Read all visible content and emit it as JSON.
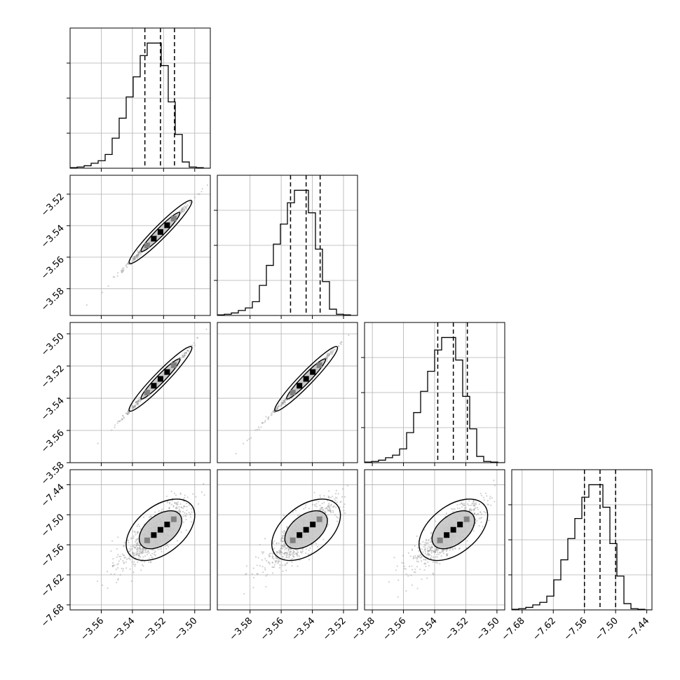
{
  "chart_data": {
    "type": "corner",
    "title": "",
    "colors": {
      "line": "#000000",
      "grid": "#b0b0b0",
      "scatter": "#9a9a9a",
      "density_mid": "#7f7f7f"
    },
    "parameters": [
      {
        "label": "",
        "quantiles": [
          -3.532,
          -3.522,
          -3.513
        ],
        "hist_range": [
          -3.58,
          -3.49
        ],
        "ticks": [
          -3.56,
          -3.54,
          -3.52,
          -3.5
        ],
        "tick_labels": [
          "−3.56",
          "−3.54",
          "−3.52",
          "−3.50"
        ],
        "hist": [
          0.5,
          1,
          2,
          4,
          6,
          11,
          24,
          40,
          57,
          73,
          90,
          100,
          100,
          82,
          53,
          27,
          5,
          1,
          0.5,
          0
        ]
      },
      {
        "label": "",
        "quantiles": [
          -3.554,
          -3.544,
          -3.535
        ],
        "hist_range": [
          -3.601,
          -3.511
        ],
        "ticks": [
          -3.58,
          -3.56,
          -3.54,
          -3.52
        ],
        "tick_labels": [
          "−3.58",
          "−3.56",
          "−3.54",
          "−3.52"
        ],
        "hist": [
          0.5,
          1,
          2,
          4,
          6,
          11,
          24,
          40,
          57,
          73,
          90,
          100,
          100,
          82,
          53,
          27,
          5,
          1,
          0.5,
          0
        ]
      },
      {
        "label": "",
        "quantiles": [
          -3.538,
          -3.528,
          -3.519
        ],
        "hist_range": [
          -3.585,
          -3.495
        ],
        "ticks": [
          -3.58,
          -3.56,
          -3.54,
          -3.52,
          -3.5
        ],
        "tick_labels": [
          "−3.58",
          "−3.56",
          "−3.54",
          "−3.52",
          "−3.50"
        ],
        "hist": [
          0.5,
          1,
          2,
          4,
          6,
          11,
          24,
          40,
          57,
          73,
          90,
          100,
          100,
          82,
          53,
          27,
          5,
          1,
          0.5,
          0
        ]
      },
      {
        "label": "",
        "quantiles": [
          -7.56,
          -7.53,
          -7.5
        ],
        "hist_range": [
          -7.7,
          -7.43
        ],
        "ticks": [
          -7.68,
          -7.62,
          -7.56,
          -7.5,
          -7.44
        ],
        "tick_labels": [
          "−7.68",
          "−7.62",
          "−7.56",
          "−7.50",
          "−7.44"
        ],
        "hist": [
          0.5,
          1,
          2,
          4,
          6,
          11,
          24,
          40,
          57,
          73,
          90,
          100,
          100,
          82,
          53,
          27,
          5,
          1,
          0.5,
          0
        ]
      }
    ],
    "row_ranges": [
      null,
      {
        "range": [
          -3.597,
          -3.508
        ],
        "ticks": [
          -3.58,
          -3.56,
          -3.54,
          -3.52
        ],
        "tick_labels": [
          "−3.58",
          "−3.56",
          "−3.54",
          "−3.52"
        ]
      },
      {
        "range": [
          -3.58,
          -3.493
        ],
        "ticks": [
          -3.58,
          -3.56,
          -3.54,
          -3.52,
          -3.5
        ],
        "tick_labels": [
          "−3.58",
          "−3.56",
          "−3.54",
          "−3.52",
          "−3.50"
        ]
      },
      {
        "range": [
          -7.69,
          -7.41
        ],
        "ticks": [
          -7.68,
          -7.62,
          -7.56,
          -7.5,
          -7.44
        ],
        "tick_labels": [
          "−7.68",
          "−7.62",
          "−7.56",
          "−7.50",
          "−7.44"
        ]
      }
    ],
    "grid": true
  }
}
